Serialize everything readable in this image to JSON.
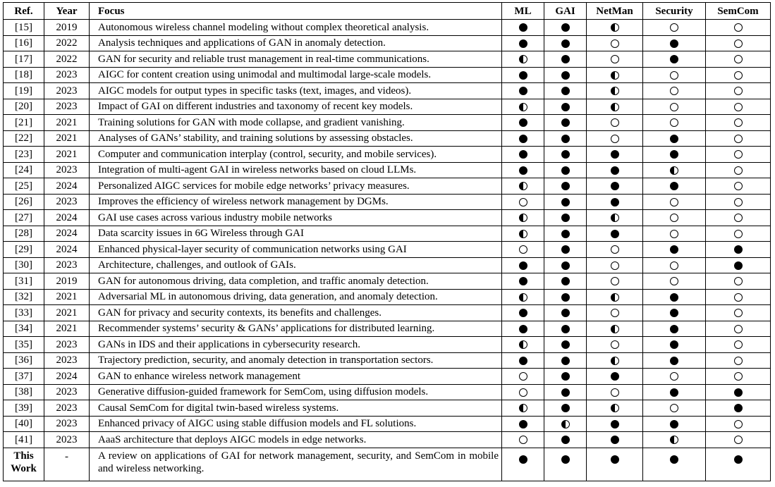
{
  "columns": [
    "Ref.",
    "Year",
    "Focus",
    "ML",
    "GAI",
    "NetMan",
    "Security",
    "SemCom"
  ],
  "rows": [
    {
      "ref": "[15]",
      "year": "2019",
      "focus": "Autonomous wireless channel modeling without complex theoretical analysis.",
      "marks": [
        "full",
        "full",
        "half",
        "empty",
        "empty"
      ]
    },
    {
      "ref": "[16]",
      "year": "2022",
      "focus": "Analysis techniques and applications of GAN in anomaly detection.",
      "marks": [
        "full",
        "full",
        "empty",
        "full",
        "empty"
      ]
    },
    {
      "ref": "[17]",
      "year": "2022",
      "focus": "GAN for security and reliable trust management in real-time communications.",
      "marks": [
        "half",
        "full",
        "empty",
        "full",
        "empty"
      ]
    },
    {
      "ref": "[18]",
      "year": "2023",
      "focus": "AIGC for content creation using unimodal and multimodal large-scale models.",
      "marks": [
        "full",
        "full",
        "half",
        "empty",
        "empty"
      ]
    },
    {
      "ref": "[19]",
      "year": "2023",
      "focus": "AIGC models for output types in specific tasks (text, images, and videos).",
      "marks": [
        "full",
        "full",
        "half",
        "empty",
        "empty"
      ]
    },
    {
      "ref": "[20]",
      "year": "2023",
      "focus": "Impact of GAI on different industries and taxonomy of recent key models.",
      "marks": [
        "half",
        "full",
        "half",
        "empty",
        "empty"
      ]
    },
    {
      "ref": "[21]",
      "year": "2021",
      "focus": "Training solutions for GAN with mode collapse, and gradient vanishing.",
      "marks": [
        "full",
        "full",
        "empty",
        "empty",
        "empty"
      ]
    },
    {
      "ref": "[22]",
      "year": "2021",
      "focus": "Analyses of GANs’ stability, and training solutions by assessing obstacles.",
      "marks": [
        "full",
        "full",
        "empty",
        "full",
        "empty"
      ]
    },
    {
      "ref": "[23]",
      "year": "2021",
      "focus": "Computer and communication interplay (control, security, and mobile services).",
      "marks": [
        "full",
        "full",
        "full",
        "full",
        "empty"
      ]
    },
    {
      "ref": "[24]",
      "year": "2023",
      "focus": "Integration of multi-agent GAI in wireless networks based on cloud LLMs.",
      "marks": [
        "full",
        "full",
        "full",
        "half",
        "empty"
      ]
    },
    {
      "ref": "[25]",
      "year": "2024",
      "focus": "Personalized AIGC services for mobile edge networks’ privacy measures.",
      "marks": [
        "half",
        "full",
        "full",
        "full",
        "empty"
      ]
    },
    {
      "ref": "[26]",
      "year": "2023",
      "focus": "Improves the efficiency of wireless network management by DGMs.",
      "marks": [
        "empty",
        "full",
        "full",
        "empty",
        "empty"
      ]
    },
    {
      "ref": "[27]",
      "year": "2024",
      "focus": "GAI use cases across various industry mobile networks",
      "marks": [
        "half",
        "full",
        "half",
        "empty",
        "empty"
      ]
    },
    {
      "ref": "[28]",
      "year": "2024",
      "focus": "Data scarcity issues in 6G Wireless through GAI",
      "marks": [
        "half",
        "full",
        "full",
        "empty",
        "empty"
      ]
    },
    {
      "ref": "[29]",
      "year": "2024",
      "focus": "Enhanced physical-layer security of communication networks using GAI",
      "marks": [
        "empty",
        "full",
        "empty",
        "full",
        "full"
      ]
    },
    {
      "ref": "[30]",
      "year": "2023",
      "focus": "Architecture, challenges, and outlook of GAIs.",
      "marks": [
        "full",
        "full",
        "empty",
        "empty",
        "full"
      ]
    },
    {
      "ref": "[31]",
      "year": "2019",
      "focus": "GAN for autonomous driving, data completion, and traffic anomaly detection.",
      "marks": [
        "full",
        "full",
        "empty",
        "empty",
        "empty"
      ]
    },
    {
      "ref": "[32]",
      "year": "2021",
      "focus": "Adversarial ML in autonomous driving, data generation, and anomaly detection.",
      "marks": [
        "half",
        "full",
        "half",
        "full",
        "empty"
      ]
    },
    {
      "ref": "[33]",
      "year": "2021",
      "focus": "GAN for privacy and security contexts, its benefits and challenges.",
      "marks": [
        "full",
        "full",
        "empty",
        "full",
        "empty"
      ]
    },
    {
      "ref": "[34]",
      "year": "2021",
      "focus": "Recommender systems’ security & GANs’ applications for distributed learning.",
      "marks": [
        "full",
        "full",
        "half",
        "full",
        "empty"
      ]
    },
    {
      "ref": "[35]",
      "year": "2023",
      "focus": "GANs in IDS and their applications in cybersecurity research.",
      "marks": [
        "half",
        "full",
        "empty",
        "full",
        "empty"
      ]
    },
    {
      "ref": "[36]",
      "year": "2023",
      "focus": "Trajectory prediction, security, and anomaly detection in transportation sectors.",
      "marks": [
        "full",
        "full",
        "half",
        "full",
        "empty"
      ]
    },
    {
      "ref": "[37]",
      "year": "2024",
      "focus": "GAN to enhance wireless network management",
      "marks": [
        "empty",
        "full",
        "full",
        "empty",
        "empty"
      ]
    },
    {
      "ref": "[38]",
      "year": "2023",
      "focus": "Generative diffusion-guided framework for SemCom, using diffusion models.",
      "marks": [
        "empty",
        "full",
        "empty",
        "full",
        "full"
      ]
    },
    {
      "ref": "[39]",
      "year": "2023",
      "focus": "Causal SemCom for digital twin-based wireless systems.",
      "marks": [
        "half",
        "full",
        "half",
        "empty",
        "full"
      ]
    },
    {
      "ref": "[40]",
      "year": "2023",
      "focus": "Enhanced privacy of AIGC using stable diffusion models and FL solutions.",
      "marks": [
        "full",
        "half",
        "full",
        "full",
        "empty"
      ]
    },
    {
      "ref": "[41]",
      "year": "2023",
      "focus": "AaaS architecture that deploys AIGC models in edge networks.",
      "marks": [
        "empty",
        "full",
        "full",
        "half",
        "empty"
      ]
    }
  ],
  "last_row": {
    "ref_line1": "This",
    "ref_line2": "Work",
    "year": "-",
    "focus": "A review on applications of GAI for network management, security, and SemCom in mobile and wireless networking.",
    "marks": [
      "full",
      "full",
      "full",
      "full",
      "full"
    ]
  }
}
